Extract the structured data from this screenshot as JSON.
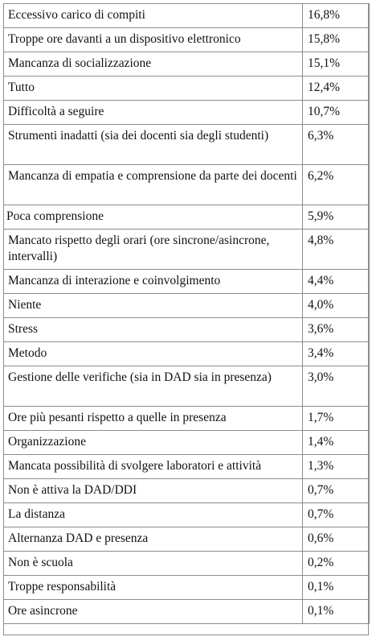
{
  "rows": [
    {
      "label": "Eccessivo carico di compiti",
      "value": "16,8%"
    },
    {
      "label": "Troppe ore davanti a un dispositivo elettronico",
      "value": "15,8%"
    },
    {
      "label": "Mancanza di socializzazione",
      "value": "15,1%"
    },
    {
      "label": "Tutto",
      "value": "12,4%"
    },
    {
      "label": "Difficoltà a seguire",
      "value": "10,7%"
    },
    {
      "label": "Strumenti inadatti (sia dei docenti sia degli studenti)",
      "value": "6,3%"
    },
    {
      "label": "Mancanza di empatia e comprensione da parte dei docenti",
      "value": "6,2%"
    },
    {
      "label": "Poca comprensione",
      "value": "5,9%"
    },
    {
      "label": "Mancato rispetto degli orari (ore sincrone/asincrone, intervalli)",
      "value": "4,8%"
    },
    {
      "label": "Mancanza di interazione e coinvolgimento",
      "value": "4,4%"
    },
    {
      "label": "Niente",
      "value": "4,0%"
    },
    {
      "label": "Stress",
      "value": "3,6%"
    },
    {
      "label": "Metodo",
      "value": "3,4%"
    },
    {
      "label": "Gestione delle verifiche (sia in DAD sia in presenza)",
      "value": "3,0%"
    },
    {
      "label": "Ore più pesanti rispetto a quelle in presenza",
      "value": "1,7%"
    },
    {
      "label": "Organizzazione",
      "value": "1,4%"
    },
    {
      "label": "Mancata possibilità di svolgere laboratori e attività",
      "value": "1,3%"
    },
    {
      "label": "Non è attiva la DAD/DDI",
      "value": "0,7%"
    },
    {
      "label": "La distanza",
      "value": "0,7%"
    },
    {
      "label": "Alternanza DAD e presenza",
      "value": "0,6%"
    },
    {
      "label": "Non è scuola",
      "value": "0,2%"
    },
    {
      "label": "Troppe responsabilità",
      "value": "0,1%"
    },
    {
      "label": "Ore asincrone",
      "value": "0,1%"
    }
  ]
}
